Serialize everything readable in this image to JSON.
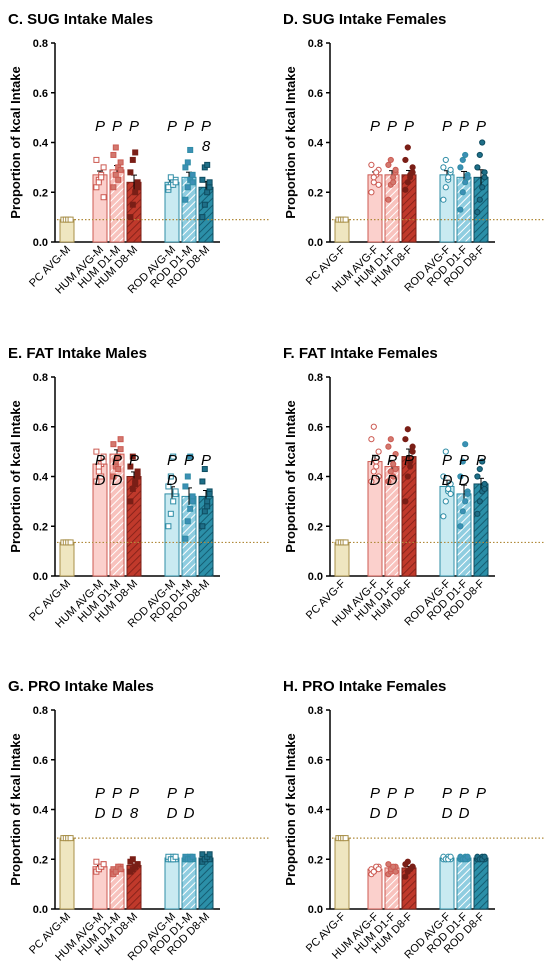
{
  "chart_data": [
    {
      "type": "bar",
      "title": "C. SUG Intake Males",
      "ylabel": "Proportion of kcal Intake",
      "ylim": [
        0,
        0.8
      ],
      "yticks": [
        "0.0",
        "0.2",
        "0.4",
        "0.6",
        "0.8"
      ],
      "reference_line": 0.09,
      "categories": [
        "PC AVG-M",
        "HUM AVG-M",
        "HUM D1-M",
        "HUM D8-M",
        "ROD AVG-M",
        "ROD D1-M",
        "ROD D8-M"
      ],
      "values": [
        0.09,
        0.27,
        0.29,
        0.24,
        0.24,
        0.26,
        0.22
      ],
      "points": [
        [
          0.09,
          0.09,
          0.09,
          0.09
        ],
        [
          0.22,
          0.25,
          0.27,
          0.3,
          0.33,
          0.24,
          0.26,
          0.18
        ],
        [
          0.22,
          0.27,
          0.3,
          0.32,
          0.35,
          0.38,
          0.25,
          0.29
        ],
        [
          0.1,
          0.15,
          0.2,
          0.24,
          0.28,
          0.33,
          0.36,
          0.22
        ],
        [
          0.21,
          0.23,
          0.24,
          0.25,
          0.22,
          0.26,
          0.23,
          0.24
        ],
        [
          0.17,
          0.22,
          0.25,
          0.27,
          0.3,
          0.32,
          0.37,
          0.24
        ],
        [
          0.1,
          0.15,
          0.2,
          0.22,
          0.25,
          0.3,
          0.31,
          0.24
        ]
      ],
      "significance": [
        [],
        [
          "P"
        ],
        [
          "P"
        ],
        [
          "P"
        ],
        [
          "P"
        ],
        [
          "P"
        ],
        [
          "P",
          "8"
        ]
      ]
    },
    {
      "type": "bar",
      "title": "D. SUG Intake Females",
      "ylabel": "Proportion of kcal Intake",
      "ylim": [
        0,
        0.8
      ],
      "yticks": [
        "0.0",
        "0.2",
        "0.4",
        "0.6",
        "0.8"
      ],
      "reference_line": 0.09,
      "categories": [
        "PC AVG-F",
        "HUM AVG-F",
        "HUM D1-F",
        "HUM D8-F",
        "ROD AVG-F",
        "ROD D1-F",
        "ROD D8-F"
      ],
      "values": [
        0.09,
        0.27,
        0.27,
        0.27,
        0.27,
        0.26,
        0.26
      ],
      "points": [
        [
          0.09,
          0.09,
          0.09,
          0.09
        ],
        [
          0.2,
          0.24,
          0.27,
          0.29,
          0.31,
          0.26,
          0.28,
          0.23
        ],
        [
          0.17,
          0.23,
          0.26,
          0.28,
          0.31,
          0.33,
          0.24,
          0.29
        ],
        [
          0.21,
          0.24,
          0.27,
          0.3,
          0.33,
          0.38,
          0.26,
          0.28
        ],
        [
          0.17,
          0.22,
          0.25,
          0.28,
          0.3,
          0.33,
          0.26,
          0.29
        ],
        [
          0.13,
          0.2,
          0.24,
          0.27,
          0.3,
          0.33,
          0.35,
          0.26
        ],
        [
          0.12,
          0.17,
          0.22,
          0.26,
          0.3,
          0.35,
          0.4,
          0.28
        ]
      ],
      "significance": [
        [],
        [
          "P"
        ],
        [
          "P"
        ],
        [
          "P"
        ],
        [
          "P"
        ],
        [
          "P"
        ],
        [
          "P"
        ]
      ]
    },
    {
      "type": "bar",
      "title": "E. FAT Intake Males",
      "ylabel": "Proportion of kcal Intake",
      "ylim": [
        0,
        0.8
      ],
      "yticks": [
        "0.0",
        "0.2",
        "0.4",
        "0.6",
        "0.8"
      ],
      "reference_line": 0.135,
      "categories": [
        "PC AVG-M",
        "HUM AVG-M",
        "HUM D1-M",
        "HUM D8-M",
        "ROD AVG-M",
        "ROD D1-M",
        "ROD D8-M"
      ],
      "values": [
        0.135,
        0.45,
        0.49,
        0.4,
        0.33,
        0.32,
        0.32
      ],
      "points": [
        [
          0.135,
          0.135,
          0.135,
          0.135
        ],
        [
          0.38,
          0.42,
          0.45,
          0.48,
          0.5,
          0.44,
          0.4,
          0.46
        ],
        [
          0.4,
          0.44,
          0.48,
          0.51,
          0.53,
          0.46,
          0.43,
          0.55
        ],
        [
          0.3,
          0.35,
          0.38,
          0.4,
          0.44,
          0.48,
          0.37,
          0.42
        ],
        [
          0.2,
          0.25,
          0.3,
          0.33,
          0.36,
          0.4,
          0.48,
          0.34
        ],
        [
          0.15,
          0.22,
          0.27,
          0.32,
          0.36,
          0.4,
          0.48,
          0.3
        ],
        [
          0.2,
          0.26,
          0.3,
          0.34,
          0.38,
          0.43,
          0.28,
          0.33
        ]
      ],
      "significance": [
        [],
        [
          "P",
          "D"
        ],
        [
          "P",
          "D"
        ],
        [
          "P"
        ],
        [
          "P",
          "D"
        ],
        [
          "P"
        ],
        [
          "P"
        ]
      ]
    },
    {
      "type": "bar",
      "title": "F. FAT Intake Females",
      "ylabel": "Proportion of kcal Intake",
      "ylim": [
        0,
        0.8
      ],
      "yticks": [
        "0.0",
        "0.2",
        "0.4",
        "0.6",
        "0.8"
      ],
      "reference_line": 0.135,
      "categories": [
        "PC AVG-F",
        "HUM AVG-F",
        "HUM D1-F",
        "HUM D8-F",
        "ROD AVG-F",
        "ROD D1-F",
        "ROD D8-F"
      ],
      "values": [
        0.135,
        0.46,
        0.44,
        0.48,
        0.36,
        0.33,
        0.37
      ],
      "points": [
        [
          0.135,
          0.135,
          0.135,
          0.135
        ],
        [
          0.38,
          0.42,
          0.46,
          0.5,
          0.55,
          0.6,
          0.44,
          0.4
        ],
        [
          0.38,
          0.42,
          0.45,
          0.49,
          0.52,
          0.55,
          0.4,
          0.43
        ],
        [
          0.3,
          0.4,
          0.46,
          0.5,
          0.55,
          0.59,
          0.44,
          0.52
        ],
        [
          0.24,
          0.3,
          0.34,
          0.37,
          0.4,
          0.5,
          0.35,
          0.33
        ],
        [
          0.2,
          0.26,
          0.3,
          0.34,
          0.4,
          0.46,
          0.53,
          0.33
        ],
        [
          0.25,
          0.3,
          0.34,
          0.37,
          0.4,
          0.43,
          0.46,
          0.35
        ]
      ],
      "significance": [
        [],
        [
          "P",
          "D"
        ],
        [
          "P",
          "D"
        ],
        [
          "P"
        ],
        [
          "P",
          "D"
        ],
        [
          "P",
          "D"
        ],
        [
          "P"
        ]
      ]
    },
    {
      "type": "bar",
      "title": "G. PRO Intake Males",
      "ylabel": "Proportion of kcal Intake",
      "ylim": [
        0,
        0.8
      ],
      "yticks": [
        "0.0",
        "0.2",
        "0.4",
        "0.6",
        "0.8"
      ],
      "reference_line": 0.285,
      "categories": [
        "PC AVG-M",
        "HUM AVG-M",
        "HUM D1-M",
        "HUM D8-M",
        "ROD AVG-M",
        "ROD D1-M",
        "ROD D8-M"
      ],
      "values": [
        0.285,
        0.17,
        0.16,
        0.175,
        0.205,
        0.205,
        0.205
      ],
      "points": [
        [
          0.285,
          0.285,
          0.285,
          0.285
        ],
        [
          0.15,
          0.16,
          0.17,
          0.18,
          0.19,
          0.16,
          0.17,
          0.18
        ],
        [
          0.14,
          0.15,
          0.16,
          0.17,
          0.16,
          0.15,
          0.17,
          0.16
        ],
        [
          0.15,
          0.16,
          0.17,
          0.18,
          0.19,
          0.2,
          0.17,
          0.18
        ],
        [
          0.2,
          0.2,
          0.21,
          0.2,
          0.21,
          0.2,
          0.2,
          0.21
        ],
        [
          0.2,
          0.2,
          0.21,
          0.2,
          0.21,
          0.2,
          0.2,
          0.21
        ],
        [
          0.19,
          0.2,
          0.21,
          0.2,
          0.22,
          0.2,
          0.21,
          0.22
        ]
      ],
      "significance": [
        [],
        [
          "P",
          "D"
        ],
        [
          "P",
          "D"
        ],
        [
          "P",
          "8"
        ],
        [
          "P",
          "D"
        ],
        [
          "P",
          "D"
        ],
        []
      ]
    },
    {
      "type": "bar",
      "title": "H. PRO Intake Females",
      "ylabel": "Proportion of kcal Intake",
      "ylim": [
        0,
        0.8
      ],
      "yticks": [
        "0.0",
        "0.2",
        "0.4",
        "0.6",
        "0.8"
      ],
      "reference_line": 0.285,
      "categories": [
        "PC AVG-F",
        "HUM AVG-F",
        "HUM D1-F",
        "HUM D8-F",
        "ROD AVG-F",
        "ROD D1-F",
        "ROD D8-F"
      ],
      "values": [
        0.285,
        0.16,
        0.165,
        0.165,
        0.205,
        0.205,
        0.205
      ],
      "points": [
        [
          0.285,
          0.285,
          0.285,
          0.285
        ],
        [
          0.14,
          0.15,
          0.16,
          0.17,
          0.16,
          0.15,
          0.17,
          0.16
        ],
        [
          0.14,
          0.15,
          0.16,
          0.17,
          0.18,
          0.16,
          0.17,
          0.15
        ],
        [
          0.13,
          0.15,
          0.16,
          0.17,
          0.18,
          0.19,
          0.16,
          0.17
        ],
        [
          0.2,
          0.2,
          0.21,
          0.2,
          0.21,
          0.2,
          0.2,
          0.21
        ],
        [
          0.2,
          0.2,
          0.21,
          0.2,
          0.21,
          0.2,
          0.2,
          0.21
        ],
        [
          0.2,
          0.2,
          0.21,
          0.2,
          0.21,
          0.2,
          0.2,
          0.21
        ]
      ],
      "significance": [
        [],
        [
          "P",
          "D"
        ],
        [
          "P",
          "D"
        ],
        [
          "P"
        ],
        [
          "P",
          "D"
        ],
        [
          "P",
          "D"
        ],
        [
          "P"
        ]
      ]
    }
  ],
  "colors": {
    "pc_fill": "#efe6c0",
    "pc_stroke": "#a8904a",
    "hum_avg_fill": "#fbd0cc",
    "hum_d1_fill": "#f3aaa3",
    "hum_d8_fill": "#c0392b",
    "hum_stroke": "#cc5a52",
    "hum_d8_stroke": "#7a1e16",
    "rod_avg_fill": "#c9eaf1",
    "rod_d1_fill": "#7fc4d8",
    "rod_d8_fill": "#2b8fa8",
    "rod_stroke": "#2f8da6",
    "rod_d8_stroke": "#0d4c60",
    "ref_line": "#b08a3a"
  }
}
